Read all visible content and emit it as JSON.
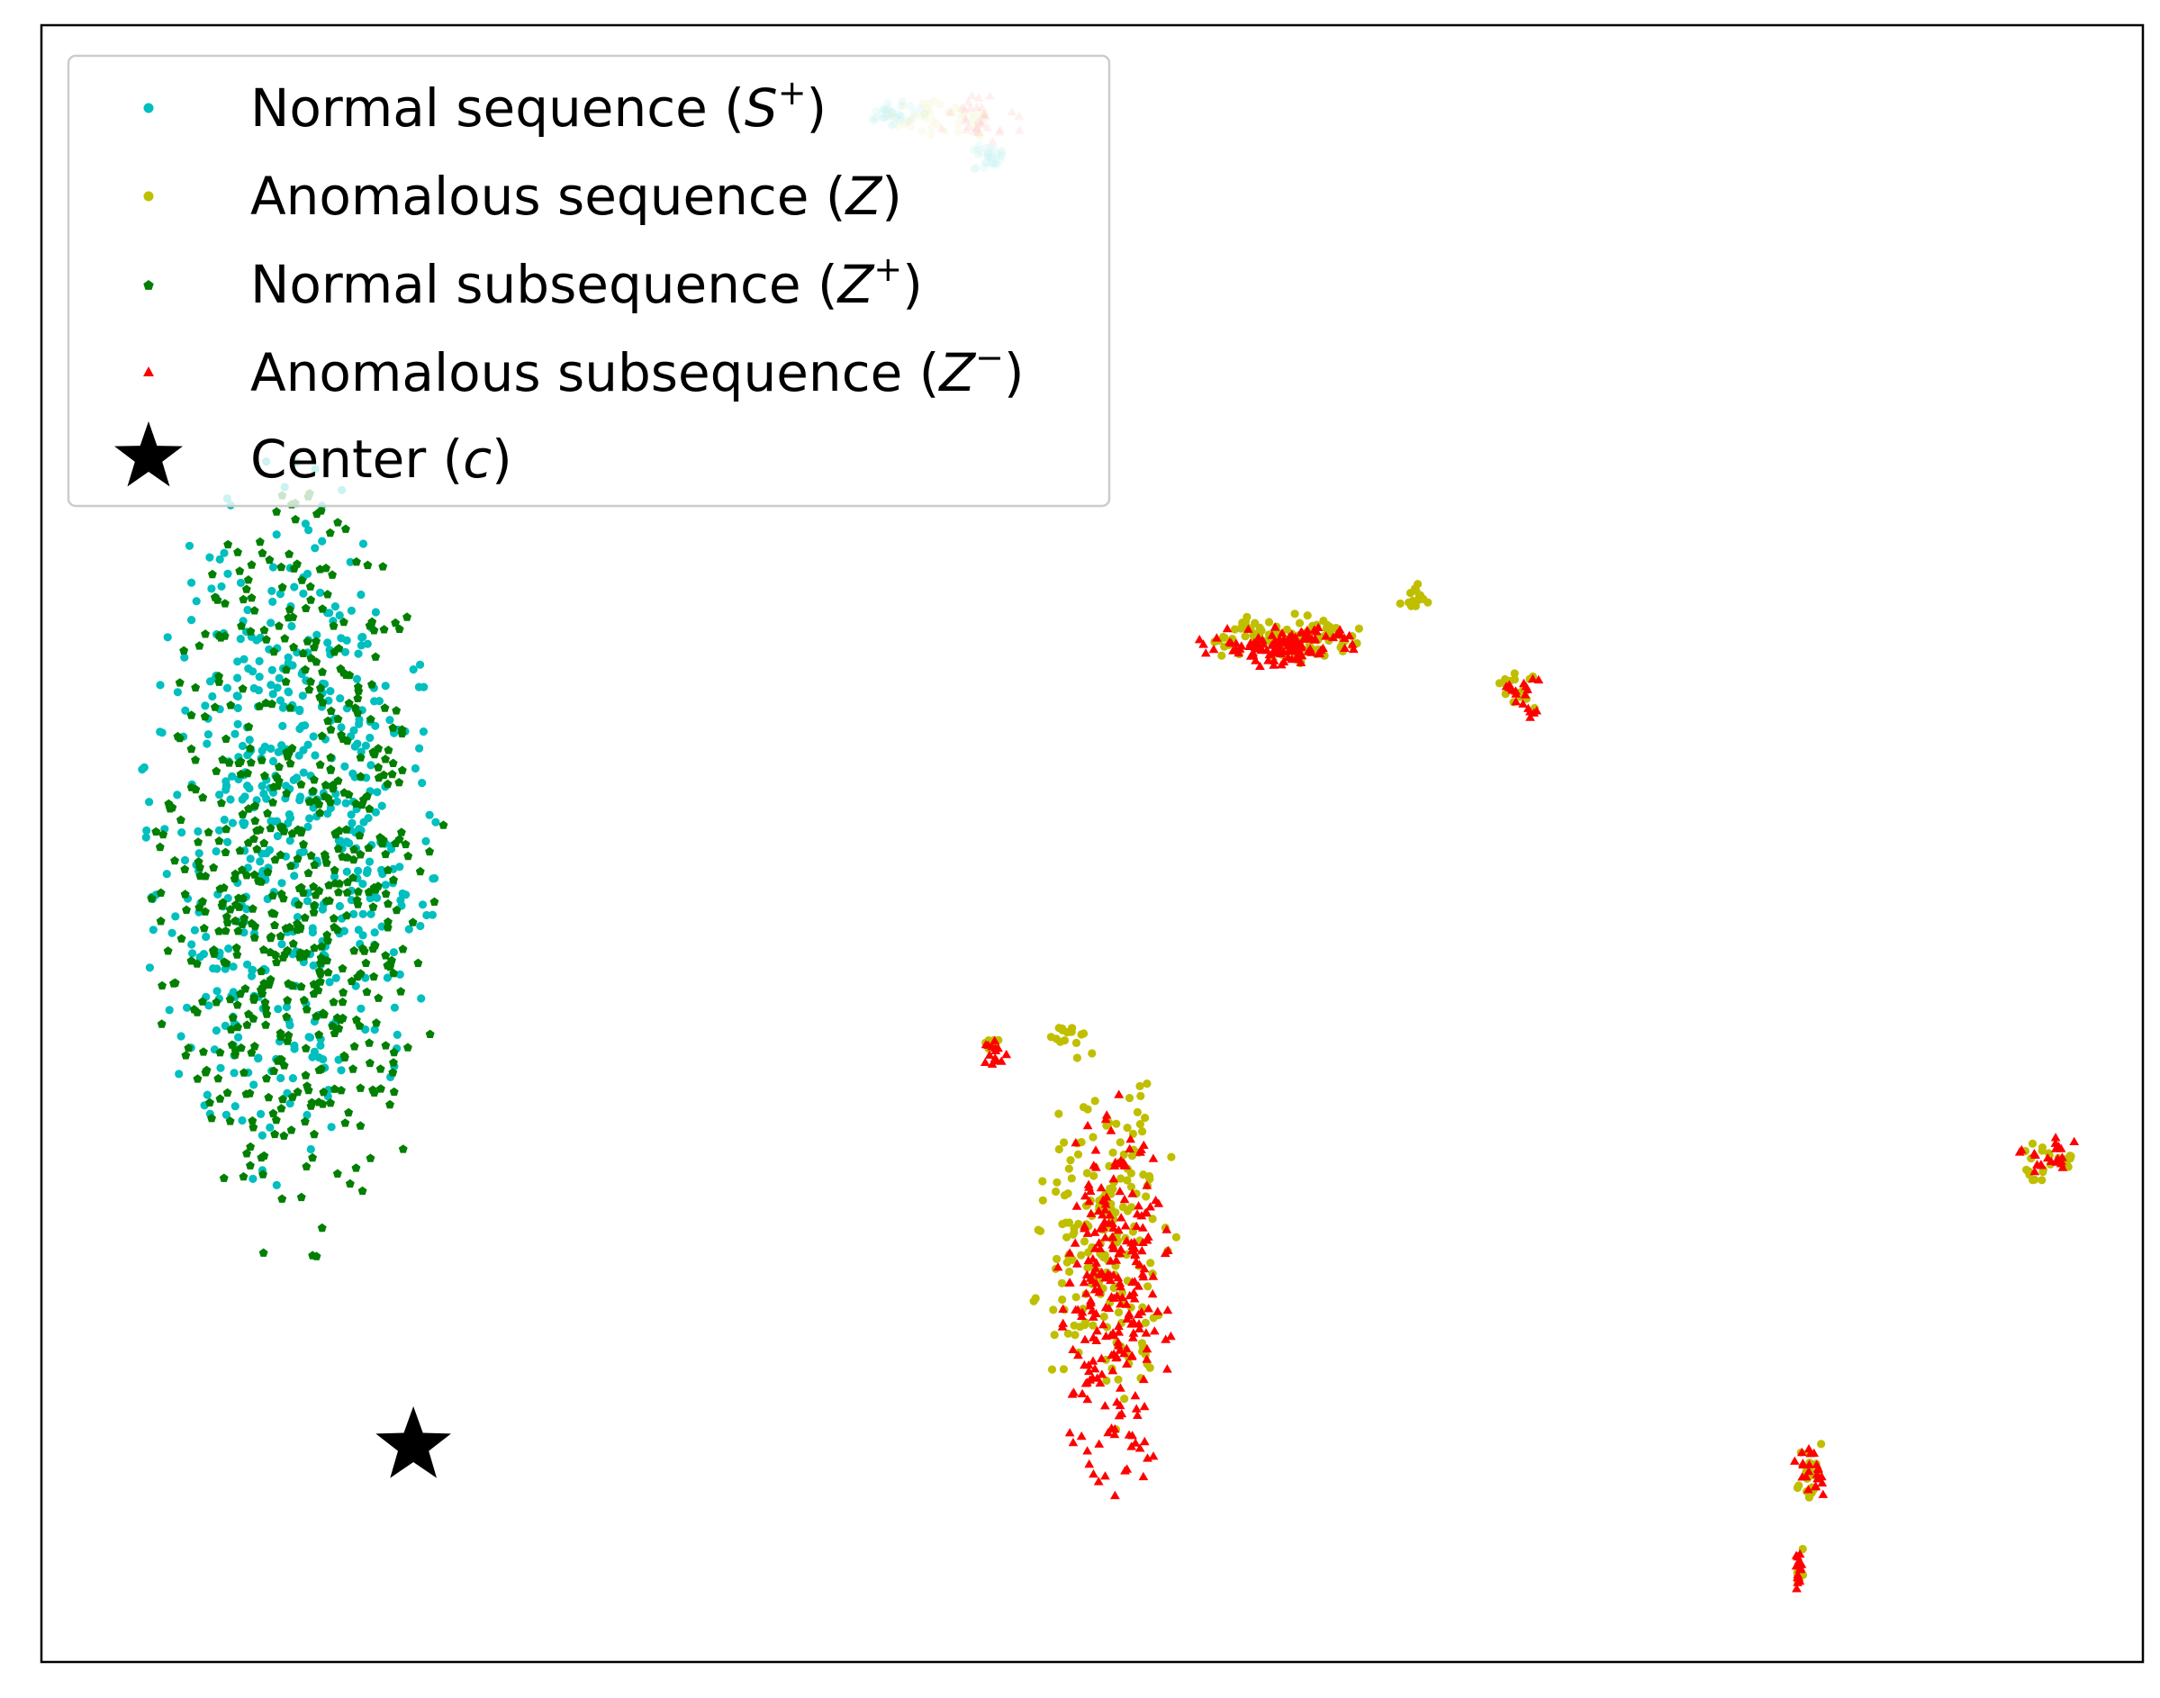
{
  "chart_data": {
    "type": "scatter",
    "title": "",
    "xlabel": "",
    "ylabel": "",
    "xlim": [
      0,
      100
    ],
    "ylim": [
      0,
      100
    ],
    "axis_ticks": false,
    "grid": false,
    "legend_position": "upper-left",
    "legend": [
      {
        "prefix": "Normal sequence (",
        "var": "S",
        "sup": "+",
        "suffix": ")"
      },
      {
        "prefix": "Anomalous sequence (",
        "var": "Z",
        "sup": "",
        "suffix": ")"
      },
      {
        "prefix": "Normal subsequence (",
        "var": "Z",
        "sup": "+",
        "suffix": ")"
      },
      {
        "prefix": "Anomalous subsequence (",
        "var": "Z",
        "sup": "−",
        "suffix": ")"
      },
      {
        "prefix": "Center (",
        "var": "c",
        "sup": "",
        "suffix": ")"
      }
    ],
    "series": [
      {
        "key": "normal_sequence",
        "marker": "circle",
        "color": "#00bfbf",
        "clusters": [
          {
            "count": 540,
            "cx": 11.7,
            "cy": 51.0,
            "rx": 7.2,
            "ry": 23.0,
            "spread": 0.5
          },
          {
            "count": 35,
            "cx": 40.5,
            "cy": 94.6,
            "rx": 1.6,
            "ry": 0.8,
            "spread": 0.45,
            "alpha": 0.3
          },
          {
            "count": 30,
            "cx": 44.9,
            "cy": 91.9,
            "rx": 1.2,
            "ry": 0.9,
            "spread": 0.45,
            "alpha": 0.3
          }
        ]
      },
      {
        "key": "anomalous_sequence",
        "marker": "circle",
        "color": "#bfbf00",
        "clusters": [
          {
            "count": 110,
            "cx": 59.2,
            "cy": 62.5,
            "rx": 4.2,
            "ry": 1.6,
            "spread": 0.42
          },
          {
            "count": 14,
            "cx": 65.7,
            "cy": 65.0,
            "rx": 1.2,
            "ry": 0.9,
            "spread": 0.45
          },
          {
            "count": 22,
            "cx": 70.3,
            "cy": 59.4,
            "rx": 1.3,
            "ry": 1.6,
            "spread": 0.4
          },
          {
            "count": 200,
            "cx": 50.6,
            "cy": 25.5,
            "rx": 3.6,
            "ry": 12.5,
            "spread": 0.42
          },
          {
            "count": 14,
            "cx": 48.8,
            "cy": 38.3,
            "rx": 1.3,
            "ry": 0.9,
            "spread": 0.45
          },
          {
            "count": 8,
            "cx": 45.2,
            "cy": 37.8,
            "rx": 0.6,
            "ry": 0.7,
            "spread": 0.4
          },
          {
            "count": 24,
            "cx": 95.2,
            "cy": 30.5,
            "rx": 1.7,
            "ry": 1.9,
            "spread": 0.45
          },
          {
            "count": 20,
            "cx": 84.2,
            "cy": 11.5,
            "rx": 0.8,
            "ry": 2.4,
            "spread": 0.4
          },
          {
            "count": 10,
            "cx": 83.6,
            "cy": 5.6,
            "rx": 0.35,
            "ry": 1.9,
            "spread": 0.3
          },
          {
            "count": 40,
            "cx": 43.0,
            "cy": 94.3,
            "rx": 2.6,
            "ry": 1.5,
            "spread": 0.45,
            "alpha": 0.3
          }
        ]
      },
      {
        "key": "normal_subsequence",
        "marker": "pentagon",
        "color": "#007f00",
        "clusters": [
          {
            "count": 590,
            "cx": 12.2,
            "cy": 48.0,
            "rx": 7.0,
            "ry": 24.0,
            "spread": 0.5
          }
        ]
      },
      {
        "key": "anomalous_subsequence",
        "marker": "triangle",
        "color": "#ff0000",
        "clusters": [
          {
            "count": 120,
            "cx": 59.0,
            "cy": 62.0,
            "rx": 4.2,
            "ry": 1.5,
            "spread": 0.4
          },
          {
            "count": 20,
            "cx": 70.4,
            "cy": 59.0,
            "rx": 1.3,
            "ry": 1.6,
            "spread": 0.42
          },
          {
            "count": 260,
            "cx": 51.0,
            "cy": 22.5,
            "rx": 3.2,
            "ry": 13.0,
            "spread": 0.4
          },
          {
            "count": 14,
            "cx": 45.4,
            "cy": 37.2,
            "rx": 0.9,
            "ry": 1.2,
            "spread": 0.4
          },
          {
            "count": 22,
            "cx": 95.6,
            "cy": 31.0,
            "rx": 1.6,
            "ry": 1.6,
            "spread": 0.45
          },
          {
            "count": 22,
            "cx": 84.2,
            "cy": 11.5,
            "rx": 0.8,
            "ry": 2.6,
            "spread": 0.4
          },
          {
            "count": 16,
            "cx": 83.6,
            "cy": 5.6,
            "rx": 0.35,
            "ry": 2.1,
            "spread": 0.3
          },
          {
            "count": 32,
            "cx": 44.7,
            "cy": 94.2,
            "rx": 2.2,
            "ry": 1.6,
            "spread": 0.45,
            "alpha": 0.3
          }
        ]
      }
    ],
    "center": {
      "x": 17.7,
      "y": 13.2,
      "marker": "star",
      "color": "#000000"
    }
  }
}
